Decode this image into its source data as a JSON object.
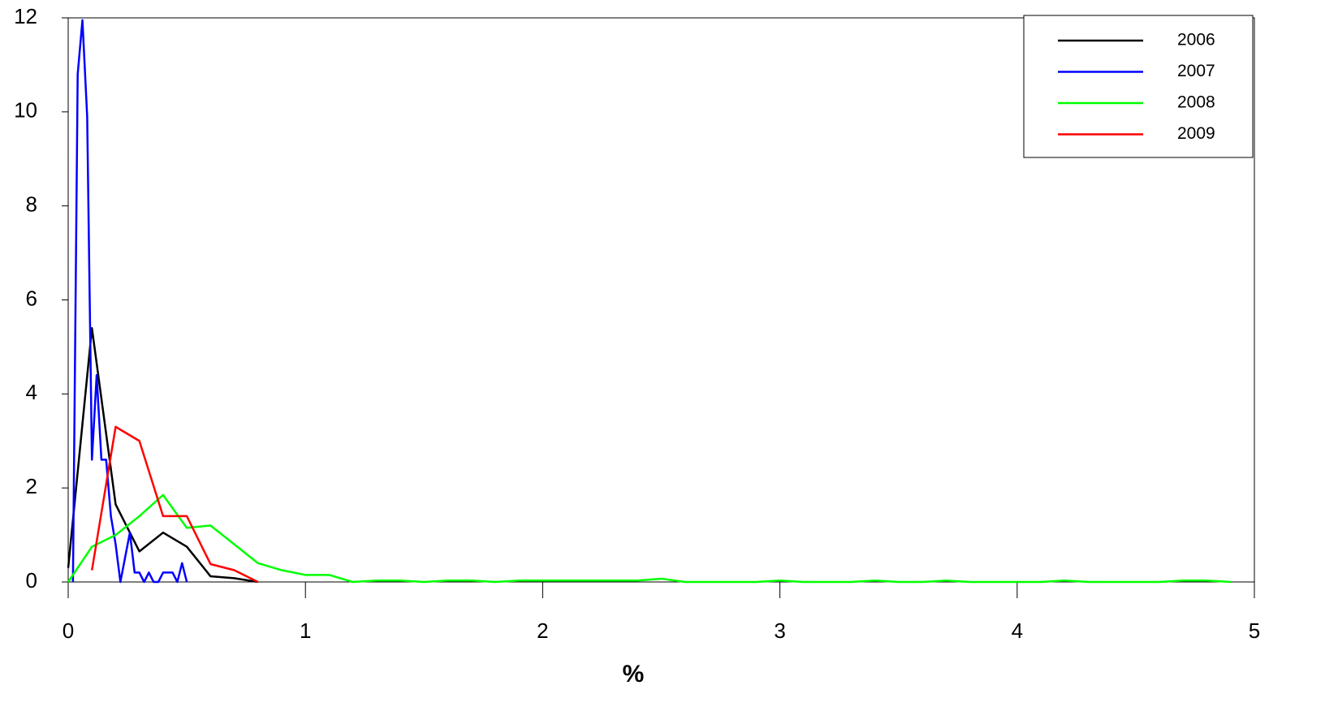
{
  "chart_data": {
    "type": "line",
    "x_label": "%",
    "xlim": [
      0,
      5
    ],
    "xticks": [
      0,
      1,
      2,
      3,
      4,
      5
    ],
    "ylim": [
      0,
      12
    ],
    "yticks": [
      0,
      2,
      4,
      6,
      8,
      10,
      12
    ],
    "grid": false,
    "legend": "upper right",
    "series": [
      {
        "name": "2006",
        "color": "#000000",
        "x": [
          0,
          0.1,
          0.2,
          0.3,
          0.4,
          0.5,
          0.6,
          0.7,
          0.8
        ],
        "values": [
          0.3,
          5.4,
          1.65,
          0.65,
          1.05,
          0.75,
          0.12,
          0.08,
          0
        ]
      },
      {
        "name": "2007",
        "color": "#0000ff",
        "x": [
          0.02,
          0.04,
          0.06,
          0.08,
          0.1,
          0.12,
          0.14,
          0.16,
          0.18,
          0.2,
          0.22,
          0.26,
          0.28,
          0.3,
          0.32,
          0.34,
          0.36,
          0.38,
          0.4,
          0.42,
          0.44,
          0.46,
          0.48,
          0.5
        ],
        "values": [
          0,
          10.8,
          11.95,
          9.9,
          2.6,
          4.4,
          2.6,
          2.6,
          1.4,
          0.8,
          0,
          1.05,
          0.2,
          0.2,
          0,
          0.2,
          0,
          0,
          0.2,
          0.2,
          0.2,
          0,
          0.4,
          0
        ]
      },
      {
        "name": "2008",
        "color": "#00ff00",
        "x": [
          0,
          0.1,
          0.2,
          0.3,
          0.4,
          0.5,
          0.6,
          0.7,
          0.8,
          0.9,
          1.0,
          1.1,
          1.2,
          1.3,
          1.4,
          1.5,
          1.6,
          1.7,
          1.8,
          1.9,
          2.0,
          2.1,
          2.2,
          2.3,
          2.4,
          2.5,
          2.6,
          2.7,
          2.8,
          2.9,
          3.0,
          3.1,
          3.2,
          3.3,
          3.4,
          3.5,
          3.6,
          3.7,
          3.8,
          3.9,
          4.0,
          4.1,
          4.2,
          4.3,
          4.4,
          4.5,
          4.6,
          4.7,
          4.8,
          4.9
        ],
        "values": [
          0,
          0.75,
          1.0,
          1.4,
          1.85,
          1.15,
          1.2,
          0.8,
          0.4,
          0.25,
          0.15,
          0.15,
          0,
          0.03,
          0.03,
          0,
          0.03,
          0.03,
          0,
          0.03,
          0.03,
          0.03,
          0.03,
          0.03,
          0.03,
          0.07,
          0,
          0,
          0,
          0,
          0.03,
          0,
          0,
          0,
          0.03,
          0,
          0,
          0.03,
          0,
          0,
          0,
          0,
          0.03,
          0,
          0,
          0,
          0,
          0.03,
          0.03,
          0
        ]
      },
      {
        "name": "2009",
        "color": "#ff0000",
        "x": [
          0.1,
          0.2,
          0.3,
          0.4,
          0.5,
          0.6,
          0.7,
          0.8
        ],
        "values": [
          0.25,
          3.3,
          3.0,
          1.4,
          1.4,
          0.38,
          0.25,
          0
        ]
      }
    ]
  }
}
